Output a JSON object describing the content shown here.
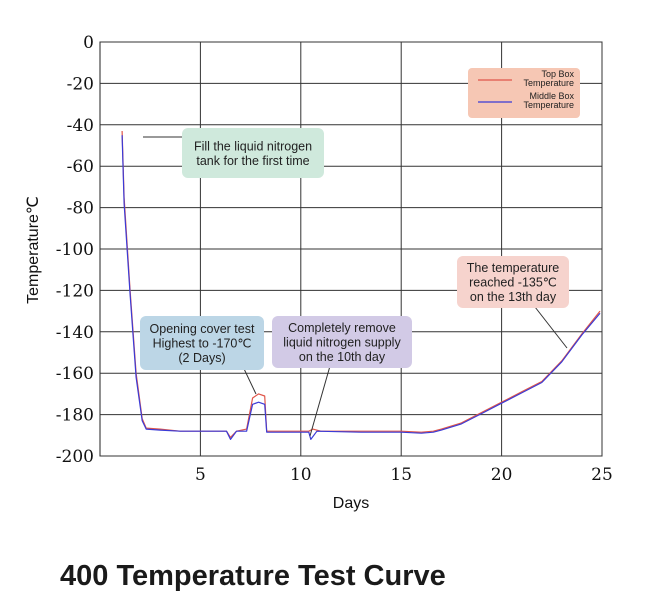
{
  "title": "400 Temperature Test Curve",
  "chart_data": {
    "type": "line",
    "xlabel": "Days",
    "ylabel": "Temperature℃",
    "xlim": [
      0,
      25
    ],
    "ylim": [
      -200,
      0
    ],
    "x_ticks": [
      "5",
      "10",
      "15",
      "20",
      "25"
    ],
    "y_ticks": [
      "0",
      "-20",
      "-40",
      "-60",
      "-80",
      "-100",
      "-120",
      "-140",
      "-160",
      "-180",
      "-200"
    ],
    "grid": true,
    "legend_position": "top-right",
    "series": [
      {
        "name": "Top Box Temperature",
        "color": "#e0564a",
        "points": [
          [
            1.1,
            -43
          ],
          [
            1.2,
            -75
          ],
          [
            1.5,
            -120
          ],
          [
            1.8,
            -160
          ],
          [
            2.1,
            -182
          ],
          [
            2.3,
            -186.5
          ],
          [
            3,
            -187
          ],
          [
            4,
            -188
          ],
          [
            5,
            -188
          ],
          [
            6.3,
            -188
          ],
          [
            6.5,
            -191
          ],
          [
            6.8,
            -188
          ],
          [
            7.3,
            -187
          ],
          [
            7.6,
            -172
          ],
          [
            7.9,
            -170
          ],
          [
            8.2,
            -171
          ],
          [
            8.3,
            -188
          ],
          [
            9,
            -188
          ],
          [
            10.4,
            -188
          ],
          [
            10.6,
            -187
          ],
          [
            11,
            -188
          ],
          [
            13,
            -188
          ],
          [
            15,
            -188
          ],
          [
            16,
            -188.5
          ],
          [
            16.6,
            -188
          ],
          [
            17,
            -187
          ],
          [
            18,
            -184
          ],
          [
            19,
            -179
          ],
          [
            20,
            -174
          ],
          [
            21,
            -169
          ],
          [
            22,
            -164
          ],
          [
            23,
            -154
          ],
          [
            24,
            -141
          ],
          [
            24.9,
            -130
          ]
        ]
      },
      {
        "name": "Middle Box Temperature",
        "color": "#3b3bd6",
        "points": [
          [
            1.1,
            -45
          ],
          [
            1.2,
            -78
          ],
          [
            1.5,
            -122
          ],
          [
            1.8,
            -162
          ],
          [
            2.1,
            -183
          ],
          [
            2.3,
            -187
          ],
          [
            3,
            -187.5
          ],
          [
            4,
            -188
          ],
          [
            5,
            -188
          ],
          [
            6.3,
            -188
          ],
          [
            6.5,
            -192
          ],
          [
            6.8,
            -188
          ],
          [
            7.3,
            -188
          ],
          [
            7.6,
            -175
          ],
          [
            7.9,
            -174
          ],
          [
            8.2,
            -175
          ],
          [
            8.3,
            -188.5
          ],
          [
            9,
            -188.5
          ],
          [
            10.4,
            -188.5
          ],
          [
            10.5,
            -192
          ],
          [
            10.8,
            -188
          ],
          [
            13,
            -188.5
          ],
          [
            15,
            -188.5
          ],
          [
            16,
            -189
          ],
          [
            16.6,
            -188.5
          ],
          [
            17,
            -187.5
          ],
          [
            18,
            -184.5
          ],
          [
            19,
            -179.5
          ],
          [
            20,
            -174.5
          ],
          [
            21,
            -169.5
          ],
          [
            22,
            -164.5
          ],
          [
            23,
            -154.5
          ],
          [
            24,
            -141.5
          ],
          [
            24.9,
            -131
          ]
        ]
      }
    ],
    "annotations": [
      {
        "key": "fill",
        "lines": [
          "Fill the liquid nitrogen",
          "tank for the first time"
        ],
        "bg": "#cfe9dc",
        "at": [
          2.4,
          -48
        ]
      },
      {
        "key": "opening",
        "lines": [
          "Opening cover test",
          "Highest to -170℃",
          "(2 Days)"
        ],
        "bg": "#bcd6e6",
        "at": [
          7.8,
          -171
        ]
      },
      {
        "key": "remove",
        "lines": [
          "Completely remove",
          "liquid nitrogen supply",
          "on the 10th day"
        ],
        "bg": "#d2cae6",
        "at": [
          10.5,
          -190
        ]
      },
      {
        "key": "reached",
        "lines": [
          "The temperature",
          "reached -135℃",
          "on the 13th day"
        ],
        "bg": "#f6d3cd",
        "at": [
          23.3,
          -152
        ]
      }
    ]
  }
}
